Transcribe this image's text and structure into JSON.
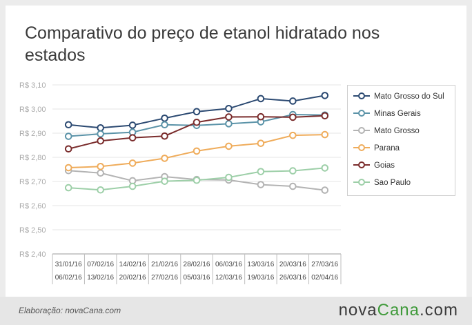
{
  "title": "Comparativo do preço de etanol hidratado nos estados",
  "footer": {
    "credit": "Elaboração: novaCana.com",
    "logo_main": "nova",
    "logo_accent": "Cana",
    "logo_suffix": ".com"
  },
  "chart_data": {
    "type": "line",
    "title": "Comparativo do preço de etanol hidratado nos estados",
    "xlabel": "",
    "ylabel": "",
    "ylim": [
      2.4,
      3.1
    ],
    "yticks": [
      "R$ 2,40",
      "R$ 2,50",
      "R$ 2,60",
      "R$ 2,70",
      "R$ 2,80",
      "R$ 2,90",
      "R$ 3,00",
      "R$ 3,10"
    ],
    "grid": true,
    "legend": "right",
    "categories_top": [
      "31/01/16",
      "07/02/16",
      "14/02/16",
      "21/02/16",
      "28/02/16",
      "06/03/16",
      "13/03/16",
      "20/03/16",
      "27/03/16"
    ],
    "categories_bottom": [
      "06/02/16",
      "13/02/16",
      "20/02/16",
      "27/02/16",
      "05/03/16",
      "12/03/16",
      "19/03/16",
      "26/03/16",
      "02/04/16"
    ],
    "series": [
      {
        "name": "Mato Grosso do Sul",
        "color": "#2c4a72",
        "values": [
          2.935,
          2.922,
          2.933,
          2.962,
          2.989,
          3.002,
          3.043,
          3.033,
          3.056
        ]
      },
      {
        "name": "Minas Gerais",
        "color": "#5b93a8",
        "values": [
          2.887,
          2.897,
          2.904,
          2.935,
          2.932,
          2.939,
          2.947,
          2.977,
          2.975
        ]
      },
      {
        "name": "Mato Grosso",
        "color": "#b3b3b3",
        "values": [
          2.745,
          2.735,
          2.703,
          2.72,
          2.708,
          2.706,
          2.687,
          2.68,
          2.664
        ]
      },
      {
        "name": "Parana",
        "color": "#efac5b",
        "values": [
          2.757,
          2.762,
          2.776,
          2.796,
          2.826,
          2.846,
          2.858,
          2.891,
          2.894
        ]
      },
      {
        "name": "Goias",
        "color": "#7a2c2c",
        "values": [
          2.835,
          2.868,
          2.881,
          2.888,
          2.945,
          2.967,
          2.968,
          2.966,
          2.972
        ]
      },
      {
        "name": "Sao Paulo",
        "color": "#9dcfa8",
        "values": [
          2.674,
          2.665,
          2.68,
          2.701,
          2.705,
          2.717,
          2.741,
          2.744,
          2.756
        ]
      }
    ]
  }
}
